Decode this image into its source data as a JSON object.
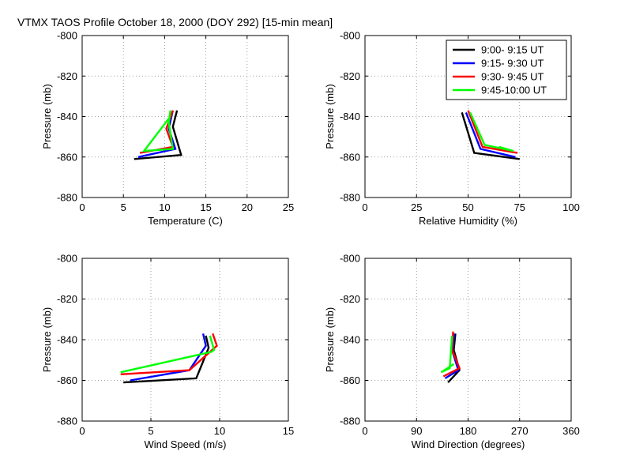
{
  "figure_title": "VTMX TAOS Profile   October 18, 2000 (DOY 292) [15-min mean]",
  "legend": [
    {
      "label": "9:00- 9:15 UT",
      "color": "#000000"
    },
    {
      "label": "9:15- 9:30 UT",
      "color": "#0000ff"
    },
    {
      "label": "9:30- 9:45 UT",
      "color": "#ff0000"
    },
    {
      "label": "9:45-10:00 UT",
      "color": "#00ff00"
    }
  ],
  "chart_data": [
    {
      "type": "line",
      "xlabel": "Temperature (C)",
      "ylabel": "Pressure (mb)",
      "xlim": [
        0,
        25
      ],
      "ylim": [
        -880,
        -800
      ],
      "xticks": [
        0,
        5,
        10,
        15,
        20,
        25
      ],
      "yticks": [
        -880,
        -860,
        -840,
        -820,
        -800
      ],
      "xtick_labels": [
        "0",
        "5",
        "10",
        "15",
        "20",
        "25"
      ],
      "ytick_labels": [
        "-880",
        "-860",
        "-840",
        "-820",
        "-800"
      ],
      "grid": true,
      "series": [
        {
          "name": "9:00- 9:15 UT",
          "x": [
            11.5,
            11.0,
            12.0,
            6.3
          ],
          "y": [
            -837,
            -845,
            -859,
            -861
          ]
        },
        {
          "name": "9:15- 9:30 UT",
          "x": [
            11.0,
            10.5,
            11.3,
            6.8
          ],
          "y": [
            -837,
            -846,
            -856,
            -860
          ]
        },
        {
          "name": "9:30- 9:45 UT",
          "x": [
            11.0,
            10.2,
            11.0,
            7.0
          ],
          "y": [
            -837,
            -846,
            -855,
            -858
          ]
        },
        {
          "name": "9:45-10:00 UT",
          "x": [
            10.7,
            10.5,
            11.0,
            7.5,
            10.5
          ],
          "y": [
            -837,
            -843,
            -856,
            -857,
            -841
          ]
        }
      ]
    },
    {
      "type": "line",
      "xlabel": "Relative Humidity (%)",
      "ylabel": "Pressure (mb)",
      "xlim": [
        0,
        100
      ],
      "ylim": [
        -880,
        -800
      ],
      "xticks": [
        0,
        25,
        50,
        75,
        100
      ],
      "yticks": [
        -880,
        -860,
        -840,
        -820,
        -800
      ],
      "xtick_labels": [
        "0",
        "25",
        "50",
        "75",
        "100"
      ],
      "ytick_labels": [
        "-880",
        "-860",
        "-840",
        "-820",
        "-800"
      ],
      "grid": true,
      "series": [
        {
          "name": "9:00- 9:15 UT",
          "x": [
            47,
            53,
            75
          ],
          "y": [
            -838,
            -858,
            -861
          ]
        },
        {
          "name": "9:15- 9:30 UT",
          "x": [
            49,
            56,
            73
          ],
          "y": [
            -838,
            -856,
            -860
          ]
        },
        {
          "name": "9:30- 9:45 UT",
          "x": [
            50,
            57,
            74
          ],
          "y": [
            -837,
            -855,
            -858
          ]
        },
        {
          "name": "9:45-10:00 UT",
          "x": [
            51,
            58,
            72,
            65
          ],
          "y": [
            -838,
            -854,
            -857,
            -855
          ]
        }
      ]
    },
    {
      "type": "line",
      "xlabel": "Wind Speed (m/s)",
      "ylabel": "Pressure (mb)",
      "xlim": [
        0,
        15
      ],
      "ylim": [
        -880,
        -800
      ],
      "xticks": [
        0,
        5,
        10,
        15
      ],
      "yticks": [
        -880,
        -860,
        -840,
        -820,
        -800
      ],
      "xtick_labels": [
        "0",
        "5",
        "10",
        "15"
      ],
      "ytick_labels": [
        "-880",
        "-860",
        "-840",
        "-820",
        "-800"
      ],
      "grid": true,
      "series": [
        {
          "name": "9:00- 9:15 UT",
          "x": [
            9.0,
            9.2,
            8.3,
            3.0
          ],
          "y": [
            -838,
            -844,
            -859,
            -861
          ]
        },
        {
          "name": "9:15- 9:30 UT",
          "x": [
            8.8,
            9.0,
            7.8,
            3.5
          ],
          "y": [
            -837,
            -843,
            -855,
            -860
          ]
        },
        {
          "name": "9:30- 9:45 UT",
          "x": [
            9.5,
            9.8,
            7.8,
            2.8
          ],
          "y": [
            -837,
            -843,
            -855,
            -857
          ]
        },
        {
          "name": "9:45-10:00 UT",
          "x": [
            9.3,
            9.6,
            9.4,
            2.8
          ],
          "y": [
            -838,
            -845,
            -846,
            -856
          ]
        }
      ]
    },
    {
      "type": "line",
      "xlabel": "Wind Direction (degrees)",
      "ylabel": "Pressure (mb)",
      "xlim": [
        0,
        360
      ],
      "ylim": [
        -880,
        -800
      ],
      "xticks": [
        0,
        90,
        180,
        270,
        360
      ],
      "yticks": [
        -880,
        -860,
        -840,
        -820,
        -800
      ],
      "xtick_labels": [
        "0",
        "90",
        "180",
        "270",
        "360"
      ],
      "ytick_labels": [
        "-880",
        "-860",
        "-840",
        "-820",
        "-800"
      ],
      "grid": true,
      "series": [
        {
          "name": "9:00- 9:15 UT",
          "x": [
            158,
            155,
            165,
            145
          ],
          "y": [
            -837,
            -845,
            -855,
            -861
          ]
        },
        {
          "name": "9:15- 9:30 UT",
          "x": [
            156,
            153,
            163,
            140
          ],
          "y": [
            -837,
            -846,
            -855,
            -859
          ]
        },
        {
          "name": "9:30- 9:45 UT",
          "x": [
            154,
            152,
            165,
            137
          ],
          "y": [
            -836,
            -845,
            -854,
            -858
          ]
        },
        {
          "name": "9:45-10:00 UT",
          "x": [
            152,
            150,
            148,
            133,
            155
          ],
          "y": [
            -838,
            -846,
            -854,
            -856,
            -852
          ]
        }
      ]
    }
  ]
}
